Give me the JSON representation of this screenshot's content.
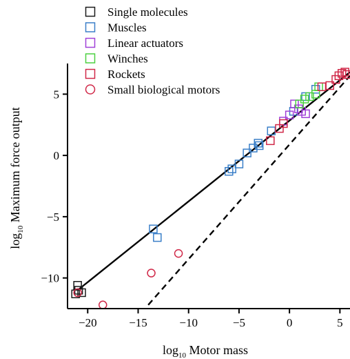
{
  "chart_data": {
    "type": "scatter",
    "xlabel_prefix": "log",
    "xlabel_sub": "10",
    "xlabel_rest": " Motor mass",
    "ylabel_prefix": "log",
    "ylabel_sub": "10",
    "ylabel_rest": " Maximum force output",
    "xlim": [
      -22,
      6
    ],
    "ylim": [
      -12.5,
      7.5
    ],
    "xticks": [
      -20,
      -15,
      -10,
      -5,
      0,
      5
    ],
    "yticks": [
      -10,
      -5,
      0,
      5
    ],
    "xtick_labels": [
      "−20",
      "−15",
      "−10",
      "−5",
      "0",
      "5"
    ],
    "ytick_labels": [
      "−10",
      "−5",
      "0",
      "5"
    ],
    "legend_position": "top-left",
    "grid": false,
    "series": [
      {
        "name": "Single molecules",
        "marker": "square",
        "color": "#1a1a1a",
        "points": [
          [
            -21.0,
            -10.6
          ],
          [
            -21.2,
            -11.3
          ],
          [
            -20.6,
            -11.2
          ],
          [
            -20.9,
            -11.0
          ]
        ]
      },
      {
        "name": "Muscles",
        "marker": "square",
        "color": "#3a7fc8",
        "points": [
          [
            -13.5,
            -6.0
          ],
          [
            -13.1,
            -6.7
          ],
          [
            -6.0,
            -1.3
          ],
          [
            -5.7,
            -1.1
          ],
          [
            -5.0,
            -0.7
          ],
          [
            -4.2,
            0.2
          ],
          [
            -3.6,
            0.6
          ],
          [
            -3.1,
            1.0
          ],
          [
            -3.0,
            0.8
          ],
          [
            -1.8,
            2.0
          ],
          [
            0.4,
            3.6
          ],
          [
            1.6,
            4.8
          ],
          [
            2.6,
            5.4
          ]
        ]
      },
      {
        "name": "Linear actuators",
        "marker": "square",
        "color": "#a040d8",
        "points": [
          [
            -0.6,
            2.8
          ],
          [
            0.0,
            3.3
          ],
          [
            0.5,
            4.2
          ],
          [
            0.9,
            3.8
          ],
          [
            1.2,
            3.6
          ],
          [
            1.6,
            3.4
          ]
        ]
      },
      {
        "name": "Winches",
        "marker": "square",
        "color": "#4cd040",
        "points": [
          [
            1.0,
            4.2
          ],
          [
            1.5,
            4.6
          ],
          [
            2.0,
            4.8
          ],
          [
            2.6,
            5.0
          ],
          [
            2.9,
            5.6
          ]
        ]
      },
      {
        "name": "Rockets",
        "marker": "square",
        "color": "#d02848",
        "points": [
          [
            -1.9,
            1.2
          ],
          [
            -1.0,
            2.2
          ],
          [
            -0.6,
            2.6
          ],
          [
            3.2,
            5.6
          ],
          [
            4.0,
            5.7
          ],
          [
            4.6,
            6.2
          ],
          [
            4.9,
            6.5
          ],
          [
            5.2,
            6.7
          ],
          [
            5.5,
            6.8
          ],
          [
            5.7,
            6.6
          ]
        ]
      },
      {
        "name": "Small biological motors",
        "marker": "circle",
        "color": "#d02848",
        "points": [
          [
            -21.0,
            -11.2
          ],
          [
            -18.5,
            -12.2
          ],
          [
            -13.7,
            -9.6
          ],
          [
            -11.0,
            -8.0
          ]
        ]
      }
    ],
    "lines": [
      {
        "style": "solid",
        "color": "#000000",
        "from": [
          -21.0,
          -11.0
        ],
        "to": [
          6.0,
          6.8
        ]
      },
      {
        "style": "dashed",
        "color": "#000000",
        "from": [
          -14.0,
          -12.2
        ],
        "to": [
          6.0,
          6.5
        ]
      }
    ]
  }
}
